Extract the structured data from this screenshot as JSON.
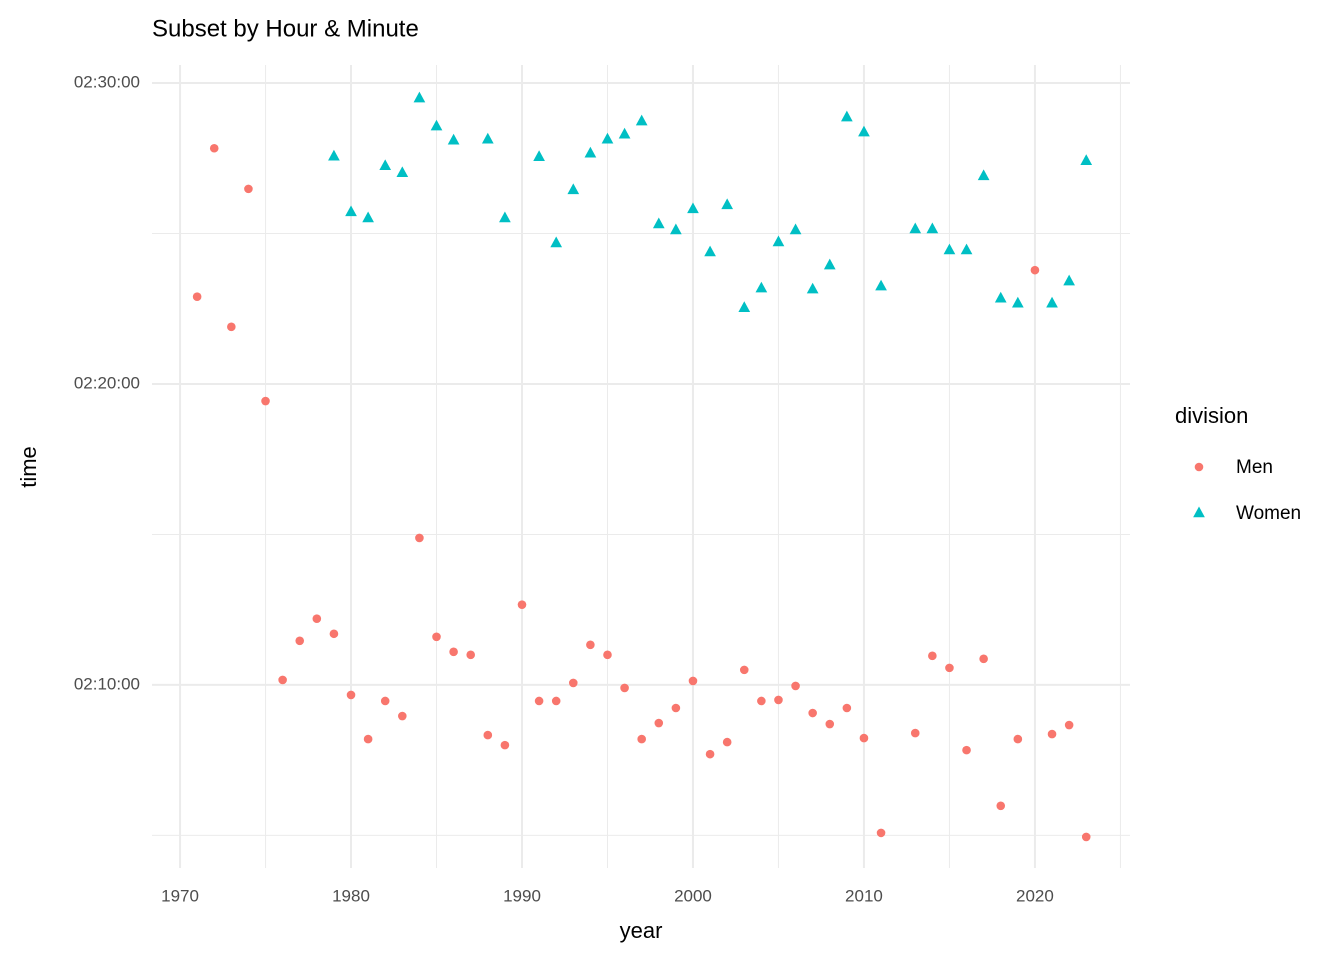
{
  "chart_data": {
    "type": "scatter",
    "title": "Subset by Hour & Minute",
    "x_label": "year",
    "y_label": "time",
    "legend_title": "division",
    "legend_position": "right",
    "grid": true,
    "xlim": [
      1968.36,
      2025.56
    ],
    "xticks": [
      1970,
      1980,
      1990,
      2000,
      2010,
      2020
    ],
    "x_minor_ticks": [
      1975,
      1985,
      1995,
      2005,
      2015,
      2025
    ],
    "ylim": [
      7435,
      9036
    ],
    "yticks": [
      {
        "value": 7800,
        "label": "02:10:00"
      },
      {
        "value": 8400,
        "label": "02:20:00"
      },
      {
        "value": 9000,
        "label": "02:30:00"
      }
    ],
    "y_minor_ticks": [
      7500,
      8100,
      8700
    ],
    "series": [
      {
        "name": "Men",
        "color": "#F8766D",
        "shape": "circle",
        "x": [
          1971,
          1972,
          1973,
          1974,
          1975,
          1976,
          1977,
          1978,
          1979,
          1980,
          1981,
          1982,
          1983,
          1984,
          1985,
          1986,
          1987,
          1988,
          1989,
          1990,
          1991,
          1992,
          1993,
          1994,
          1995,
          1996,
          1997,
          1998,
          1999,
          2000,
          2001,
          2002,
          2003,
          2004,
          2005,
          2006,
          2007,
          2008,
          2009,
          2010,
          2011,
          2013,
          2014,
          2015,
          2016,
          2017,
          2018,
          2019,
          2020,
          2021,
          2022,
          2023
        ],
        "values": [
          8574,
          8870,
          8514,
          8789,
          8366,
          7810,
          7888,
          7932,
          7902,
          7780,
          7692,
          7768,
          7738,
          8093,
          7896,
          7866,
          7860,
          7700,
          7680,
          7960,
          7768,
          7768,
          7804,
          7880,
          7860,
          7794,
          7692,
          7724,
          7754,
          7808,
          7662,
          7686,
          7830,
          7768,
          7770,
          7798,
          7744,
          7722,
          7754,
          7694,
          7505,
          7704,
          7858,
          7834,
          7670,
          7852,
          7559,
          7692,
          8627,
          7702,
          7720,
          7497
        ]
      },
      {
        "name": "Women",
        "color": "#00BFC4",
        "shape": "triangle",
        "x": [
          1979,
          1980,
          1981,
          1982,
          1983,
          1984,
          1985,
          1986,
          1988,
          1989,
          1991,
          1992,
          1993,
          1994,
          1995,
          1996,
          1997,
          1998,
          1999,
          2000,
          2001,
          2002,
          2003,
          2004,
          2005,
          2006,
          2007,
          2008,
          2009,
          2010,
          2011,
          2013,
          2014,
          2015,
          2016,
          2017,
          2018,
          2019,
          2021,
          2022,
          2023
        ],
        "values": [
          8854,
          8743,
          8731,
          8835,
          8821,
          8970,
          8914,
          8886,
          8888,
          8731,
          8853,
          8681,
          8787,
          8860,
          8888,
          8898,
          8924,
          8719,
          8707,
          8749,
          8663,
          8757,
          8552,
          8591,
          8683,
          8707,
          8589,
          8637,
          8932,
          8902,
          8595,
          8709,
          8709,
          8667,
          8667,
          8815,
          8571,
          8561,
          8561,
          8605,
          8845
        ]
      }
    ]
  }
}
